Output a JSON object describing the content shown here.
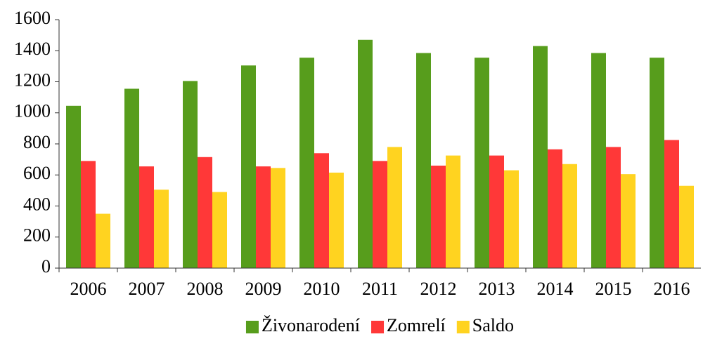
{
  "chart_data": {
    "type": "bar",
    "categories": [
      "2006",
      "2007",
      "2008",
      "2009",
      "2010",
      "2011",
      "2012",
      "2013",
      "2014",
      "2015",
      "2016"
    ],
    "series": [
      {
        "name": "Živonarodení",
        "color": "#579d1c",
        "values": [
          1045,
          1155,
          1205,
          1305,
          1355,
          1470,
          1385,
          1355,
          1430,
          1385,
          1355
        ]
      },
      {
        "name": "Zomrelí",
        "color": "#ff3838",
        "values": [
          690,
          655,
          715,
          655,
          740,
          690,
          660,
          725,
          765,
          780,
          825
        ]
      },
      {
        "name": "Saldo",
        "color": "#ffd320",
        "values": [
          350,
          505,
          490,
          645,
          615,
          780,
          725,
          630,
          670,
          605,
          530
        ]
      }
    ],
    "ylim": [
      0,
      1600
    ],
    "yticks": [
      0,
      200,
      400,
      600,
      800,
      1000,
      1200,
      1400,
      1600
    ],
    "grid": false,
    "legend": "bottom"
  }
}
